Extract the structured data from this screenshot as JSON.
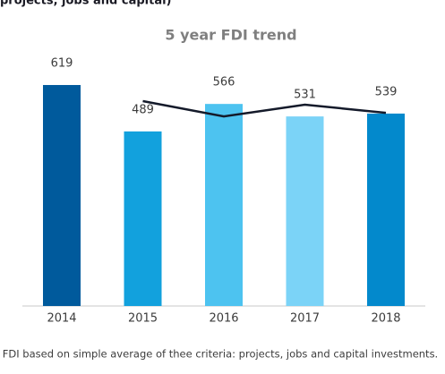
{
  "chart_data": {
    "type": "bar",
    "heading": "projects, jobs and capital)",
    "title": "5 year FDI trend",
    "categories": [
      "2014",
      "2015",
      "2016",
      "2017",
      "2018"
    ],
    "series": [
      {
        "type": "bar",
        "colors": [
          "#005a9c",
          "#12a1dd",
          "#4dc3f0",
          "#7bd3f7",
          "#0389cc"
        ],
        "values": [
          619,
          489,
          566,
          531,
          539
        ]
      },
      {
        "type": "line",
        "color": "#141a2a",
        "values": [
          null,
          574,
          531,
          564,
          541
        ]
      }
    ],
    "footnote": "FDI based on simple average of thee criteria: projects, jobs and capital investments."
  }
}
